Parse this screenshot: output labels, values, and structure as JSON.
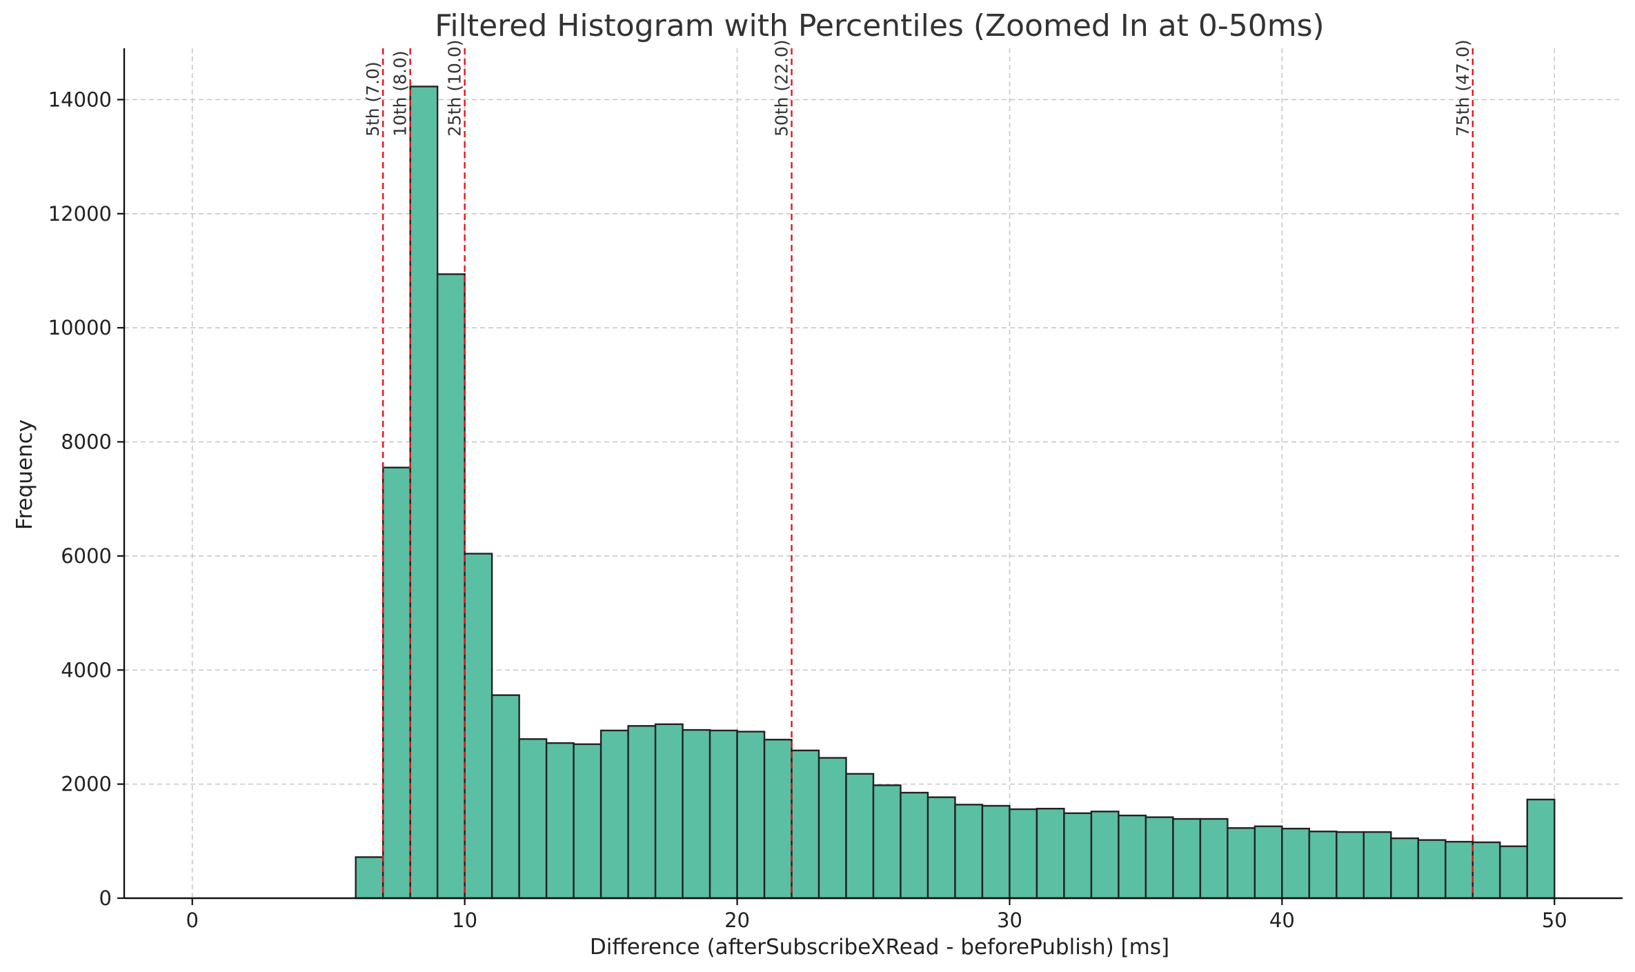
{
  "chart_data": {
    "type": "bar",
    "title": "Filtered Histogram with Percentiles (Zoomed In at 0-50ms)",
    "xlabel": "Difference (afterSubscribeXRead - beforePublish) [ms]",
    "ylabel": "Frequency",
    "xlim": [
      -2.5,
      52.5
    ],
    "ylim": [
      0,
      14900
    ],
    "grid": true,
    "x_ticks": [
      0,
      10,
      20,
      30,
      40,
      50
    ],
    "y_ticks": [
      0,
      2000,
      4000,
      6000,
      8000,
      10000,
      12000,
      14000
    ],
    "bin_edges": [
      6,
      7,
      8,
      9,
      10,
      11,
      12,
      13,
      14,
      15,
      16,
      17,
      18,
      19,
      20,
      21,
      22,
      23,
      24,
      25,
      26,
      27,
      28,
      29,
      30,
      31,
      32,
      33,
      34,
      35,
      36,
      37,
      38,
      39,
      40,
      41,
      42,
      43,
      44,
      45,
      46,
      47,
      48,
      49,
      50
    ],
    "values": [
      720,
      7550,
      14230,
      10940,
      6040,
      3560,
      2790,
      2720,
      2700,
      2940,
      3020,
      3050,
      2950,
      2940,
      2920,
      2780,
      2590,
      2460,
      2180,
      1980,
      1850,
      1770,
      1640,
      1620,
      1560,
      1570,
      1490,
      1520,
      1450,
      1420,
      1390,
      1390,
      1230,
      1260,
      1220,
      1170,
      1160,
      1160,
      1050,
      1020,
      990,
      980,
      910,
      1730
    ],
    "percentiles": [
      {
        "label": "5th (7.0)",
        "value": 7.0
      },
      {
        "label": "10th (8.0)",
        "value": 8.0
      },
      {
        "label": "25th (10.0)",
        "value": 10.0
      },
      {
        "label": "50th (22.0)",
        "value": 22.0
      },
      {
        "label": "75th (47.0)",
        "value": 47.0
      }
    ],
    "colors": {
      "bar": "#5bbfa3",
      "edge": "#222222",
      "percentile": "#e8141a",
      "grid": "#c8c8c8"
    }
  }
}
